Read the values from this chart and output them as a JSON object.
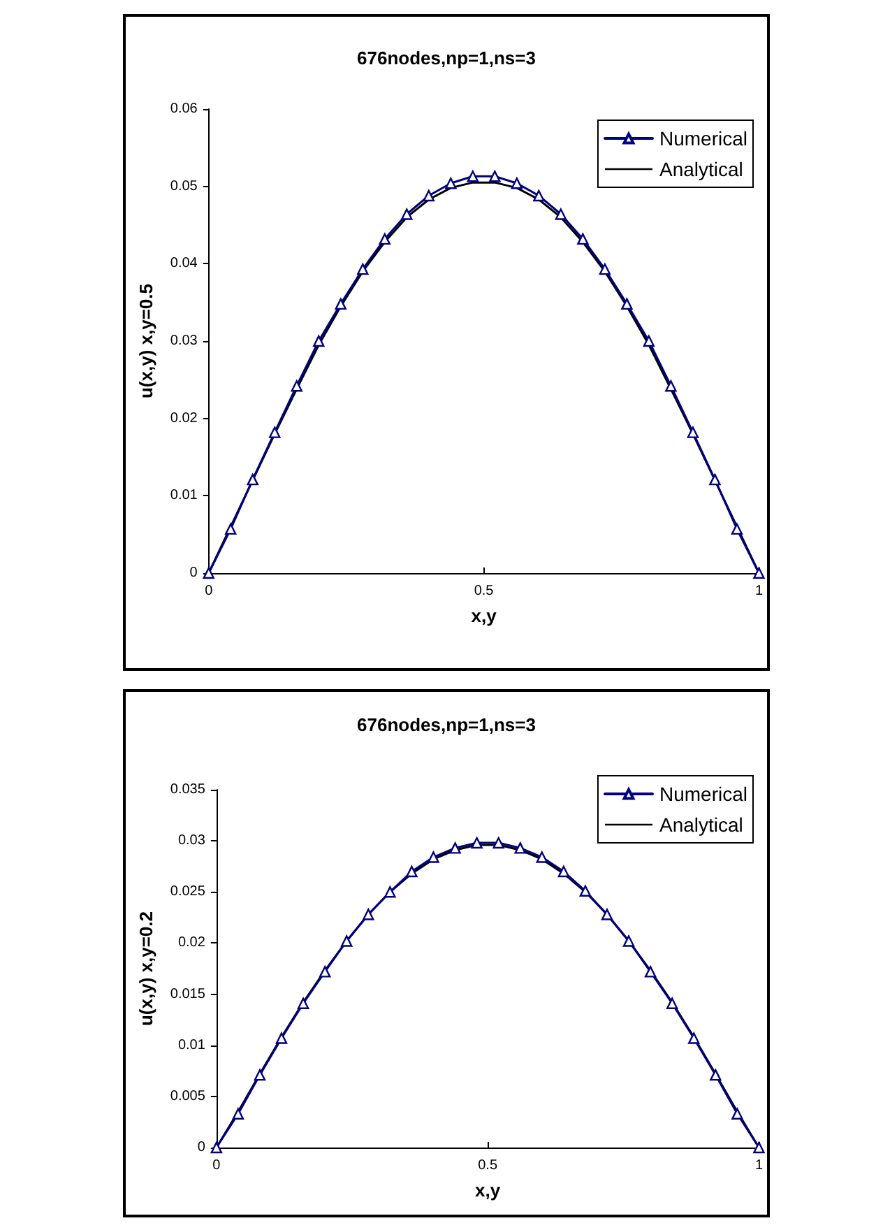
{
  "chart_data": [
    {
      "type": "line",
      "title": "676nodes,np=1,ns=3",
      "xlabel": "x,y",
      "ylabel": "u(x,y) x,y=0.5",
      "xlim": [
        0,
        1
      ],
      "xticks": [
        0,
        0.5,
        1
      ],
      "ylim": [
        0,
        0.06
      ],
      "yticks": [
        0,
        0.01,
        0.02,
        0.03,
        0.04,
        0.05,
        0.06
      ],
      "grid": false,
      "legend": "top right",
      "line_style": "solid",
      "x": [
        0,
        0.04,
        0.08,
        0.12,
        0.16,
        0.2,
        0.24,
        0.28,
        0.32,
        0.36,
        0.4,
        0.44,
        0.48,
        0.52,
        0.56,
        0.6,
        0.64,
        0.68,
        0.72,
        0.76,
        0.8,
        0.84,
        0.88,
        0.92,
        0.96,
        1
      ],
      "series": [
        {
          "name": "Numerical",
          "color": "#000080",
          "marker": "triangle",
          "values": [
            0,
            0.0057,
            0.0121,
            0.0182,
            0.0242,
            0.03,
            0.0348,
            0.0393,
            0.0432,
            0.0464,
            0.0488,
            0.0504,
            0.0513,
            0.0513,
            0.0504,
            0.0488,
            0.0464,
            0.0432,
            0.0393,
            0.0348,
            0.03,
            0.0242,
            0.0182,
            0.0121,
            0.0057,
            0
          ]
        },
        {
          "name": "Analytical",
          "color": "#000000",
          "marker": "none",
          "values": [
            0,
            0.006,
            0.012,
            0.018,
            0.0238,
            0.0295,
            0.0345,
            0.039,
            0.0428,
            0.046,
            0.0483,
            0.0498,
            0.0505,
            0.0505,
            0.0498,
            0.0483,
            0.046,
            0.0428,
            0.039,
            0.0345,
            0.0295,
            0.0238,
            0.018,
            0.012,
            0.006,
            0
          ]
        }
      ]
    },
    {
      "type": "line",
      "title": "676nodes,np=1,ns=3",
      "xlabel": "x,y",
      "ylabel": "u(x,y) x,y=0.2",
      "xlim": [
        0,
        1
      ],
      "xticks": [
        0,
        0.5,
        1
      ],
      "ylim": [
        0,
        0.035
      ],
      "yticks": [
        0,
        0.005,
        0.01,
        0.015,
        0.02,
        0.025,
        0.03,
        0.035
      ],
      "grid": false,
      "legend": "top right",
      "line_style": "solid",
      "x": [
        0,
        0.04,
        0.08,
        0.12,
        0.16,
        0.2,
        0.24,
        0.28,
        0.32,
        0.36,
        0.4,
        0.44,
        0.48,
        0.52,
        0.56,
        0.6,
        0.64,
        0.68,
        0.72,
        0.76,
        0.8,
        0.84,
        0.88,
        0.92,
        0.96,
        1
      ],
      "series": [
        {
          "name": "Numerical",
          "color": "#000080",
          "marker": "triangle",
          "values": [
            0,
            0.0033,
            0.0071,
            0.0107,
            0.0141,
            0.0172,
            0.0202,
            0.0228,
            0.025,
            0.027,
            0.0284,
            0.0293,
            0.0298,
            0.0298,
            0.0293,
            0.0284,
            0.027,
            0.0251,
            0.0228,
            0.0202,
            0.0172,
            0.0141,
            0.0107,
            0.0071,
            0.0033,
            0
          ]
        },
        {
          "name": "Analytical",
          "color": "#000000",
          "marker": "none",
          "values": [
            0,
            0.0035,
            0.0072,
            0.0108,
            0.0142,
            0.0173,
            0.0202,
            0.0228,
            0.025,
            0.0268,
            0.0282,
            0.0291,
            0.0296,
            0.0296,
            0.0291,
            0.0282,
            0.0268,
            0.025,
            0.0228,
            0.0202,
            0.0173,
            0.0142,
            0.0108,
            0.0072,
            0.0035,
            0
          ]
        }
      ]
    }
  ]
}
